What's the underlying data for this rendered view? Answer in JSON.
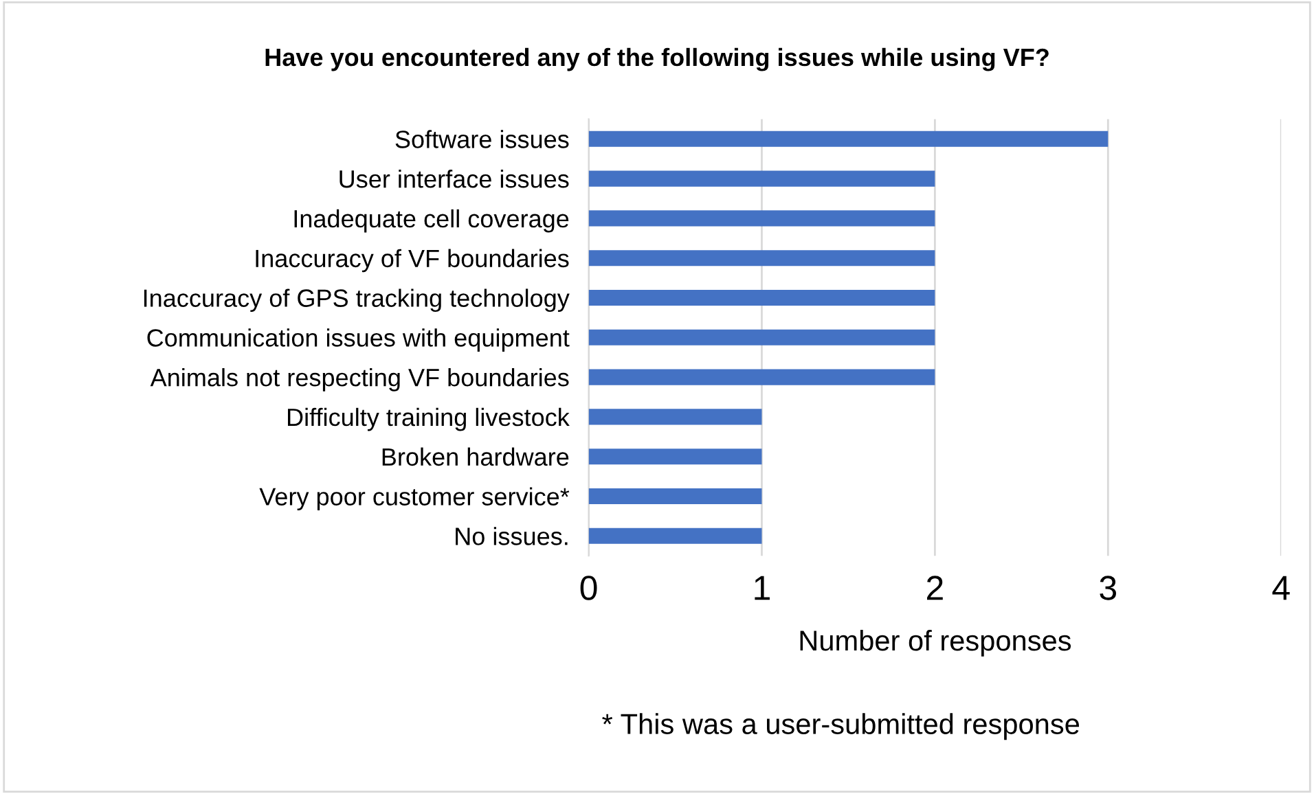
{
  "chart_data": {
    "type": "bar",
    "orientation": "horizontal",
    "title": "Have you encountered any of the following issues while using VF?",
    "categories": [
      "Software issues",
      "User interface issues",
      "Inadequate cell coverage",
      "Inaccuracy of VF boundaries",
      "Inaccuracy of GPS tracking technology",
      "Communication issues with equipment",
      "Animals not respecting VF boundaries",
      "Difficulty training livestock",
      "Broken hardware",
      "Very poor customer service*",
      "No issues."
    ],
    "values": [
      3,
      2,
      2,
      2,
      2,
      2,
      2,
      1,
      1,
      1,
      1
    ],
    "color": "#4472c4",
    "xlim": [
      0,
      4
    ],
    "xticks": [
      0,
      1,
      2,
      3,
      4
    ],
    "xlabel": "Number of responses",
    "annotations": [
      "* This was a user-submitted response"
    ],
    "grid": "x"
  }
}
